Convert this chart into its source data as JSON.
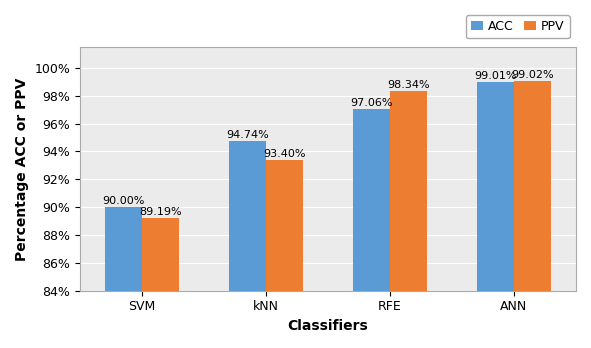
{
  "classifiers": [
    "SVM",
    "kNN",
    "RFE",
    "ANN"
  ],
  "acc_values": [
    90.0,
    94.74,
    97.06,
    99.01
  ],
  "ppv_values": [
    89.19,
    93.4,
    98.34,
    99.02
  ],
  "acc_labels": [
    "90.00%",
    "94.74%",
    "97.06%",
    "99.01%"
  ],
  "ppv_labels": [
    "89.19%",
    "93.40%",
    "98.34%",
    "99.02%"
  ],
  "acc_color": "#5B9BD5",
  "ppv_color": "#ED7D31",
  "xlabel": "Classifiers",
  "ylabel": "Percentage ACC or PPV",
  "ylim_min": 84,
  "ylim_max": 101.5,
  "yticks": [
    84,
    86,
    88,
    90,
    92,
    94,
    96,
    98,
    100
  ],
  "ytick_labels": [
    "84%",
    "86%",
    "88%",
    "90%",
    "92%",
    "94%",
    "96%",
    "98%",
    "100%"
  ],
  "legend_labels": [
    "ACC",
    "PPV"
  ],
  "bar_width": 0.3,
  "label_fontsize": 8,
  "axis_label_fontsize": 10,
  "tick_fontsize": 9,
  "legend_fontsize": 9,
  "background_color": "#EBEBEB"
}
